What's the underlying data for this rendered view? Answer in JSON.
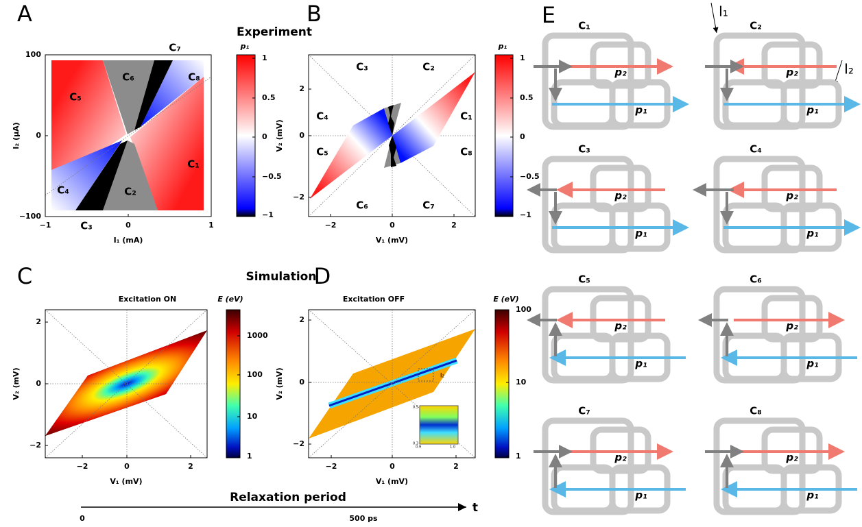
{
  "panel_labels": [
    "A",
    "B",
    "C",
    "D",
    "E"
  ],
  "headings": {
    "experiment": "Experiment",
    "simulation": "Simulation",
    "relaxation": "Relaxation period"
  },
  "panel_a": {
    "x_label": "I₁ (mA)",
    "y_label": "I₂ (μA)",
    "x_ticks": [
      "−1",
      "0",
      "1"
    ],
    "y_ticks": [
      "100",
      "0",
      "−100"
    ],
    "regions": [
      "C₁",
      "C₂",
      "C₃",
      "C₄",
      "C₅",
      "C₆",
      "C₇",
      "C₈"
    ],
    "colorbar_title": "p₁",
    "colorbar_ticks": [
      "1",
      "0.5",
      "0",
      "−0.5",
      "−1"
    ]
  },
  "panel_b": {
    "x_label": "V₁ (mV)",
    "y_label": "V₂ (mV)",
    "x_ticks": [
      "−2",
      "0",
      "2"
    ],
    "y_ticks": [
      "2",
      "0",
      "−2"
    ],
    "regions": [
      "C₁",
      "C₂",
      "C₃",
      "C₄",
      "C₅",
      "C₆",
      "C₇",
      "C₈"
    ],
    "colorbar_title": "p₁",
    "colorbar_ticks": [
      "1",
      "0.5",
      "0",
      "−0.5",
      "−1"
    ]
  },
  "panel_c": {
    "title": "Excitation ON",
    "x_label": "V₁ (mV)",
    "y_label": "V₂ (mV)",
    "x_ticks": [
      "−2",
      "0",
      "2"
    ],
    "y_ticks": [
      "2",
      "0",
      "−2"
    ],
    "colorbar_title": "E (eV)",
    "colorbar_ticks": [
      "1000",
      "100",
      "10",
      "1"
    ]
  },
  "panel_d": {
    "title": "Excitation OFF",
    "x_label": "V₁ (mV)",
    "y_label": "V₂ (mV)",
    "x_ticks": [
      "−2",
      "0",
      "2"
    ],
    "y_ticks": [
      "2",
      "0",
      "−2"
    ],
    "colorbar_title": "E (eV)",
    "colorbar_ticks": [
      "100",
      "10",
      "1"
    ],
    "inset_label": "I₂",
    "inset_ticks": [
      "0.5",
      "0.3",
      "0.9",
      "1.0"
    ]
  },
  "timeline": {
    "start": "0",
    "end": "500 ps",
    "axis": "t"
  },
  "panel_e": {
    "currents": [
      "I₁",
      "I₂"
    ],
    "diagrams": [
      {
        "title": "C₁",
        "p2": "p₂",
        "p1": "p₁"
      },
      {
        "title": "C₂",
        "p2": "p₂",
        "p1": "p₁"
      },
      {
        "title": "C₃",
        "p2": "p₂",
        "p1": "p₁"
      },
      {
        "title": "C₄",
        "p2": "p₂",
        "p1": "p₁"
      },
      {
        "title": "C₅",
        "p2": "p₂",
        "p1": "p₁"
      },
      {
        "title": "C₆",
        "p2": "p₂",
        "p1": "p₁"
      },
      {
        "title": "C₇",
        "p2": "p₂",
        "p1": "p₁"
      },
      {
        "title": "C₈",
        "p2": "p₂",
        "p1": "p₁"
      }
    ]
  }
}
